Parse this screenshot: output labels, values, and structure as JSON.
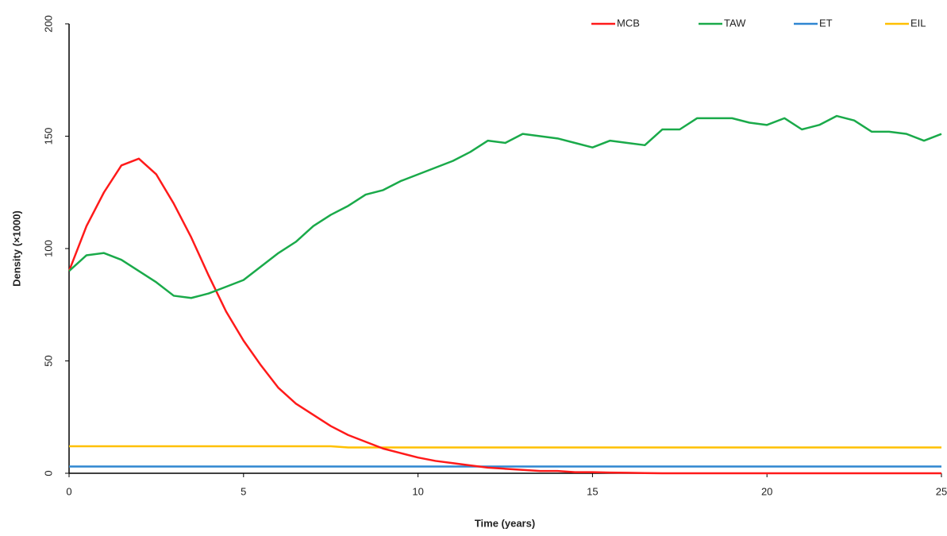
{
  "chart_data": {
    "type": "line",
    "xlabel": "Time (years)",
    "ylabel": "Density (×1000)",
    "x": [
      0,
      0.5,
      1,
      1.5,
      2,
      2.5,
      3,
      3.5,
      4,
      4.5,
      5,
      5.5,
      6,
      6.5,
      7,
      7.5,
      8,
      8.5,
      9,
      9.5,
      10,
      10.5,
      11,
      11.5,
      12,
      12.5,
      13,
      13.5,
      14,
      14.5,
      15,
      15.5,
      16,
      16.5,
      17,
      17.5,
      18,
      18.5,
      19,
      19.5,
      20,
      20.5,
      21,
      21.5,
      22,
      22.5,
      23,
      23.5,
      24,
      24.5,
      25
    ],
    "series": [
      {
        "name": "MCB",
        "color": "#ff1a1a",
        "values": [
          90,
          110,
          125,
          137,
          140,
          133,
          120,
          105,
          88,
          72,
          59,
          48,
          38,
          31,
          26,
          21,
          17,
          14,
          11,
          9,
          7,
          5.5,
          4.5,
          3.5,
          2.5,
          2,
          1.5,
          1,
          1,
          0.5,
          0.5,
          0.3,
          0.2,
          0.1,
          0,
          0,
          0,
          0,
          0,
          0,
          0,
          0,
          0,
          0,
          0,
          0,
          0,
          0,
          0,
          0,
          0
        ]
      },
      {
        "name": "TAW",
        "color": "#1aaa4a",
        "values": [
          90,
          97,
          98,
          95,
          90,
          85,
          79,
          78,
          80,
          83,
          86,
          92,
          98,
          103,
          110,
          115,
          119,
          124,
          126,
          130,
          133,
          136,
          139,
          143,
          148,
          147,
          151,
          150,
          149,
          147,
          145,
          148,
          147,
          146,
          153,
          153,
          158,
          158,
          158,
          156,
          155,
          158,
          153,
          155,
          159,
          157,
          152,
          152,
          151,
          148,
          151
        ]
      },
      {
        "name": "ET",
        "color": "#2f86d1",
        "values": [
          3,
          3,
          3,
          3,
          3,
          3,
          3,
          3,
          3,
          3,
          3,
          3,
          3,
          3,
          3,
          3,
          3,
          3,
          3,
          3,
          3,
          3,
          3,
          3,
          3,
          3,
          3,
          3,
          3,
          3,
          3,
          3,
          3,
          3,
          3,
          3,
          3,
          3,
          3,
          3,
          3,
          3,
          3,
          3,
          3,
          3,
          3,
          3,
          3,
          3,
          3
        ]
      },
      {
        "name": "EIL",
        "color": "#ffc000",
        "values": [
          12,
          12,
          12,
          12,
          12,
          12,
          12,
          12,
          12,
          12,
          12,
          12,
          12,
          12,
          12,
          12,
          11.5,
          11.5,
          11.5,
          11.5,
          11.5,
          11.5,
          11.5,
          11.5,
          11.5,
          11.5,
          11.5,
          11.5,
          11.5,
          11.5,
          11.5,
          11.5,
          11.5,
          11.5,
          11.5,
          11.5,
          11.5,
          11.5,
          11.5,
          11.5,
          11.5,
          11.5,
          11.5,
          11.5,
          11.5,
          11.5,
          11.5,
          11.5,
          11.5,
          11.5,
          11.5
        ]
      }
    ],
    "xlim": [
      0,
      25
    ],
    "xticks": [
      0,
      5,
      10,
      15,
      20,
      25
    ],
    "ylim": [
      0,
      200
    ],
    "yticks": [
      0,
      50,
      100,
      150,
      200
    ],
    "grid": false,
    "legend": "top"
  }
}
